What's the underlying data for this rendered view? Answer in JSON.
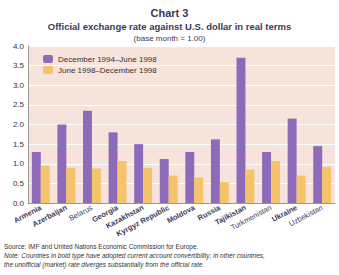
{
  "chart_data": {
    "type": "bar",
    "title": "Chart 3",
    "subtitle": [
      "Official exchange rate against U.S. dollar in real terms",
      "(base month = 1.00)"
    ],
    "categories": [
      "Armenia",
      "Azerbaijan",
      "Belarus",
      "Georgia",
      "Kazakhstan",
      "Kyrgyz Republic",
      "Moldova",
      "Russia",
      "Tajikistan",
      "Turkmenistan",
      "Ukraine",
      "Uzbekistan"
    ],
    "series": [
      {
        "name": "December 1994–June 1998",
        "color": "#8e6bb8",
        "values": [
          1.3,
          2.0,
          2.35,
          1.8,
          1.5,
          1.12,
          1.3,
          1.62,
          3.7,
          1.3,
          2.15,
          1.45
        ]
      },
      {
        "name": "June 1998–December 1998",
        "color": "#f5c46a",
        "values": [
          0.95,
          0.9,
          0.88,
          1.07,
          0.9,
          0.7,
          0.65,
          0.53,
          0.85,
          1.07,
          0.7,
          0.92
        ]
      }
    ],
    "ylim": [
      0,
      4
    ],
    "yticks": [
      {
        "value": 0,
        "label": "0.0"
      },
      0.5,
      {
        "value": 1,
        "label": "1.0"
      },
      1.5,
      {
        "value": 2,
        "label": "2.0"
      },
      2.5,
      {
        "value": 3,
        "label": "3.0"
      },
      3.5,
      {
        "value": 4,
        "label": "4.0"
      }
    ],
    "grid": true,
    "legend": "top-left",
    "source": "Source: IMF and United Nations Economic Commission for Europe.",
    "note": [
      "Note: Countries in bold type have adopted current account convertibility; in other countries,",
      "the unofficial (market) rate diverges substantially from the official rate."
    ]
  }
}
